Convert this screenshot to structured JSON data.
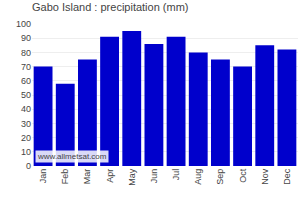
{
  "chart_data": {
    "type": "bar",
    "title": "Gabo Island : precipitation (mm)",
    "categories": [
      "Jan",
      "Feb",
      "Mar",
      "Apr",
      "May",
      "Jun",
      "Jul",
      "Aug",
      "Sep",
      "Oct",
      "Nov",
      "Dec"
    ],
    "values": [
      70,
      58,
      75,
      91,
      95,
      86,
      91,
      80,
      75,
      70,
      85,
      82
    ],
    "color": "#0000CC",
    "ylim": [
      0,
      100
    ],
    "yticks": [
      0,
      10,
      20,
      30,
      40,
      50,
      60,
      70,
      80,
      90,
      100
    ],
    "grid": true,
    "annotations": [
      "www.allmetsat.com"
    ]
  }
}
